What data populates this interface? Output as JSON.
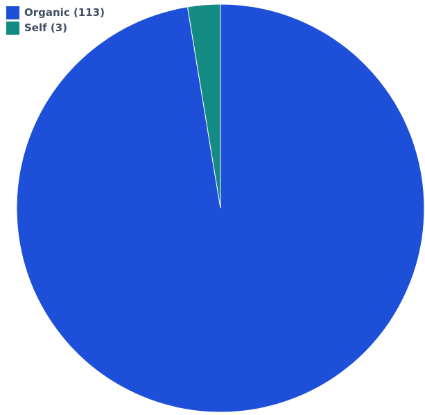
{
  "chart_data": {
    "type": "pie",
    "title": "",
    "legend_position": "top-left",
    "slices": [
      {
        "label": "Organic (113)",
        "name": "Organic",
        "value": 113,
        "color": "#1e4fd8"
      },
      {
        "label": "Self (3)",
        "name": "Self",
        "value": 3,
        "color": "#138a82"
      }
    ]
  }
}
